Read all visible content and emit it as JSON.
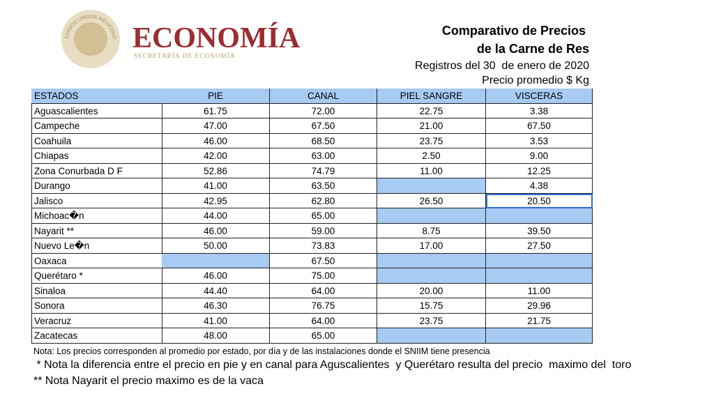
{
  "header": {
    "seal_text": "ESTADOS UNIDOS MEXICANOS",
    "logo_title": "ECONOMÍA",
    "logo_subtitle": "SECRETARÍA DE ECONOMÍA",
    "title_line1": "Comparativo de Precios",
    "title_line2": "de la Carne de Res",
    "date": "Registros del 30  de enero de 2020",
    "unit": "Precio promedio $ Kg"
  },
  "table": {
    "columns": [
      "ESTADOS",
      "PIE",
      "CANAL",
      "PIEL SANGRE",
      "VISCERAS"
    ],
    "rows": [
      [
        "Aguascalientes",
        "61.75",
        "72.00",
        "22.75",
        "3.38"
      ],
      [
        "Campeche",
        "47.00",
        "67.50",
        "21.00",
        "67.50"
      ],
      [
        "Coahuila",
        "46.00",
        "68.50",
        "23.75",
        "3.53"
      ],
      [
        "Chiapas",
        "42.00",
        "63.00",
        "2.50",
        "9.00"
      ],
      [
        "Zona Conurbada D F",
        "52.86",
        "74.79",
        "11.00",
        "12.25"
      ],
      [
        "Durango",
        "41.00",
        "63.50",
        null,
        "4.38"
      ],
      [
        "Jalisco",
        "42.95",
        "62.80",
        "26.50",
        "20.50"
      ],
      [
        "Michoac�n",
        "44.00",
        "65.00",
        null,
        null
      ],
      [
        "Nayarit **",
        "46.00",
        "59.00",
        "8.75",
        "39.50"
      ],
      [
        "Nuevo Le�n",
        "50.00",
        "73.83",
        "17.00",
        "27.50"
      ],
      [
        "Oaxaca",
        null,
        "67.50",
        null,
        null
      ],
      [
        "Querétaro *",
        "46.00",
        "75.00",
        null,
        null
      ],
      [
        "Sinaloa",
        "44.40",
        "64.00",
        "20.00",
        "11.00"
      ],
      [
        "Sonora",
        "46.30",
        "76.75",
        "15.75",
        "29.96"
      ],
      [
        "Veracruz",
        "41.00",
        "64.00",
        "23.75",
        "21.75"
      ],
      [
        "Zacatecas",
        "48.00",
        "65.00",
        null,
        null
      ]
    ]
  },
  "notes": [
    "Nota: Los precios corresponden al promedio por estado, por día y de las instalaciones donde el SNIIM tiene presencia",
    " * Nota la diferencia entre el precio en pie y en canal para Aguscalientes  y Querétaro resulta del precio  maximo del  toro",
    "** Nota Nayarit el precio maximo es de la vaca"
  ]
}
